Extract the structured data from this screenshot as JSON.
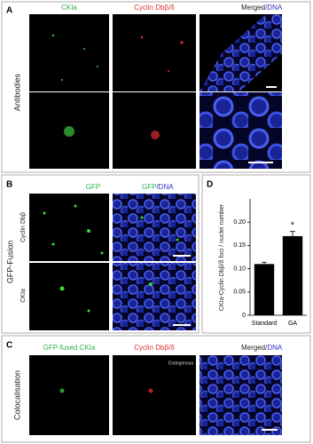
{
  "panel_a": {
    "label": "A",
    "col1": "CKIa",
    "col2": "Cyclin Dbβ/δ",
    "col3_main": "Merged",
    "col3_dna": "/DNA",
    "row_label": "Antibodies"
  },
  "panel_b": {
    "label": "B",
    "col1": "GFP",
    "col2_main": "GFP",
    "col2_dna": "/DNA",
    "group_label": "GFP-Fusion",
    "row1_label": "Cyclin Dbβ",
    "row2_label": "CKIa"
  },
  "panel_c": {
    "label": "C",
    "col1": "GFP-fused CKIa",
    "col2": "Cyclin Dbβ/δ",
    "col2_note": "Endogenous",
    "col3_main": "Merged",
    "col3_dna": "/DNA",
    "row_label": "Colocalisation"
  },
  "chart_data": {
    "type": "bar",
    "label": "D",
    "y_label": "CKIa-Cyclin Dbβ/δ foci / nuclei number",
    "categories": [
      "Standard",
      "GA"
    ],
    "values": [
      0.11,
      0.17
    ],
    "errors": [
      0.004,
      0.01
    ],
    "color": "#000000",
    "annotation": "*",
    "ylim": [
      0,
      0.25
    ],
    "yticks": [
      0,
      0.05,
      {
        "value": 0.1,
        "label": "0.10"
      },
      0.15,
      {
        "value": 0.2,
        "label": "0.20"
      }
    ]
  }
}
